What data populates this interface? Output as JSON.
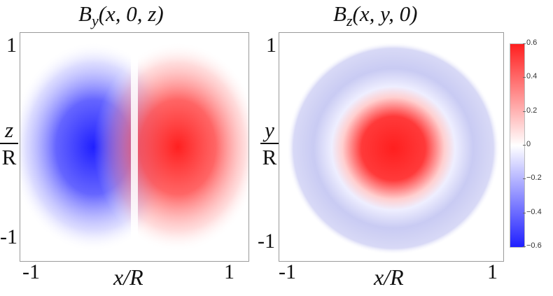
{
  "chart_data": [
    {
      "type": "heatmap",
      "title_func": "B",
      "title_sub": "y",
      "title_args": "(x, 0, z)",
      "x_label": "x/R",
      "y_label_num": "z",
      "y_label_den": "R",
      "xlim": [
        -1,
        1
      ],
      "ylim": [
        -1,
        1
      ],
      "x_tick_labels": [
        "-1",
        "1"
      ],
      "y_tick_labels": [
        "1",
        "-1"
      ],
      "pattern": "antisymmetric lobes: negative (blue) peak near x=-0.35, positive (red) peak near x=0.35, zero along x=0",
      "peak_values": {
        "negative": -0.6,
        "positive": 0.6
      }
    },
    {
      "type": "heatmap",
      "title_func": "B",
      "title_sub": "z",
      "title_args": "(x, y, 0)",
      "x_label": "x/R",
      "y_label_num": "y",
      "y_label_den": "R",
      "xlim": [
        -1,
        1
      ],
      "ylim": [
        -1,
        1
      ],
      "x_tick_labels": [
        "-1",
        "1"
      ],
      "y_tick_labels": [
        "1",
        "-1"
      ],
      "pattern": "central positive (red) disk, outer negative (light blue) ring extending to r=1",
      "peak_values": {
        "center": 0.55,
        "ring": -0.15
      }
    }
  ],
  "colorbar": {
    "ticks": [
      "0.6",
      "0.4",
      "0.2",
      "0",
      "−0.2",
      "−0.4",
      "−0.6"
    ],
    "range": [
      -0.6,
      0.6
    ],
    "colors": {
      "min": "#1f1fff",
      "mid": "#ffffff",
      "max": "#ff1f1f"
    }
  }
}
